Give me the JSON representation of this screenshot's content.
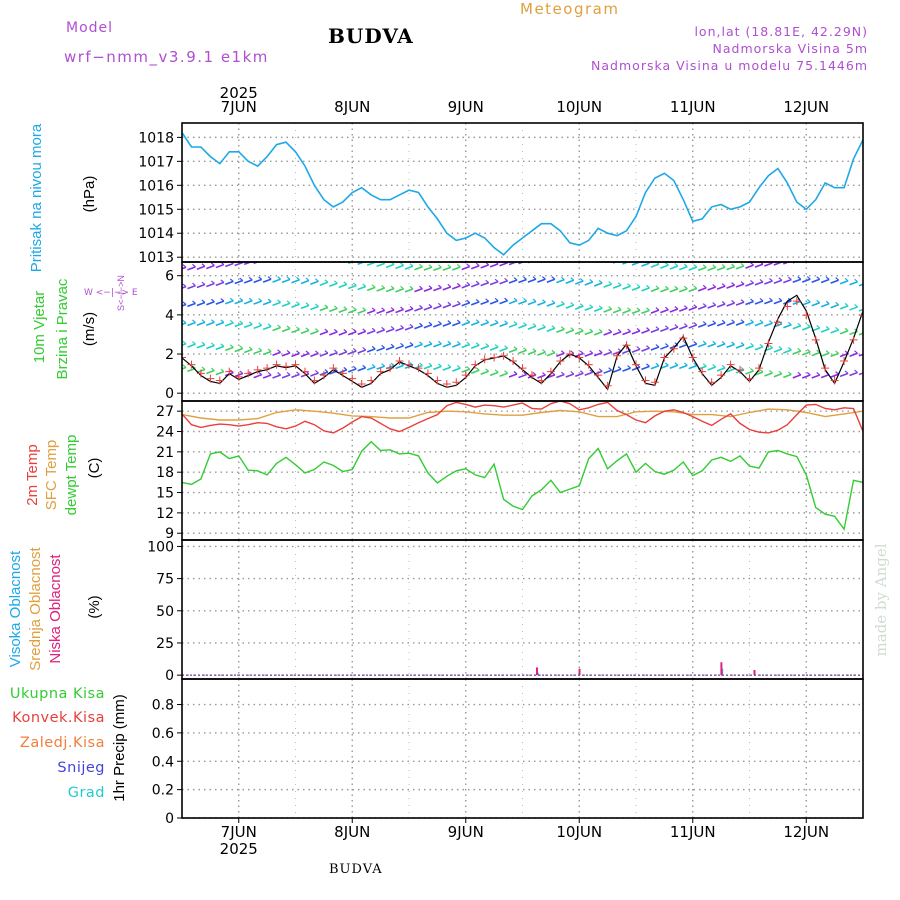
{
  "header": {
    "model_label": "Model",
    "model_name": "wrf−nmm_v3.9.1  e1km",
    "location": "BUDVA",
    "product": "Meteogram",
    "coords": "lon,lat (18.81E, 42.29N)",
    "elevation": "Nadmorska Visina 5m",
    "model_elevation": "Nadmorska Visina u modelu 75.1446m",
    "footer_location": "BUDVA",
    "watermark": "made by Angel"
  },
  "colors": {
    "pressure": "#1ea8e8",
    "temp2m": "#e8403c",
    "sfc_temp": "#e0a040",
    "dewpoint": "#33cc33",
    "wind_speed": "#000000",
    "gust": "#e8403c",
    "high_cloud": "#1ea8e8",
    "mid_cloud": "#e0a040",
    "low_cloud": "#e0207c",
    "frame": "#000000",
    "grid": "#888888"
  },
  "time_axis": {
    "year": "2025",
    "days": [
      "7JUN",
      "8JUN",
      "9JUN",
      "10JUN",
      "11JUN",
      "12JUN"
    ],
    "start_hour_offset": -12,
    "end_hour": 132
  },
  "panels": {
    "pressure": {
      "label": "Pritisak na nivou mora",
      "unit": "(hPa)",
      "ticks": [
        "1013",
        "1014",
        "1015",
        "1016",
        "1017",
        "1018"
      ]
    },
    "wind": {
      "label1": "10m Vjetar",
      "label2": "Brzina i Pravac",
      "unit": "(m/s)",
      "ticks": [
        "0",
        "2",
        "4",
        "6"
      ],
      "compass": "W  <−|−>  E",
      "compass_v": "S<−|−>N"
    },
    "temperature": {
      "label1": "2m Temp",
      "label2": "SFC Temp",
      "label3": "dewpt Temp",
      "unit": "(C)",
      "ticks": [
        "9",
        "12",
        "15",
        "18",
        "21",
        "24",
        "27"
      ]
    },
    "cloud": {
      "label1": "Visoka Oblacnost",
      "label2": "Srednja Oblacnost",
      "label3": "Niska Oblacnost",
      "unit": "(%)",
      "ticks": [
        "0",
        "25",
        "50",
        "75",
        "100"
      ]
    },
    "precip": {
      "unit": "1hr Precip (mm)",
      "ticks": [
        "0",
        "0.2",
        "0.4",
        "0.6",
        "0.8"
      ],
      "legend": [
        "Ukupna Kisa",
        "Konvek.Kisa",
        "Zaledj.Kisa",
        "Snijeg",
        "Grad"
      ]
    }
  },
  "chart_data": [
    {
      "type": "line",
      "title": "Pritisak na nivou mora",
      "ylabel": "(hPa)",
      "ylim": [
        1012.8,
        1018.6
      ],
      "x_unit": "hours since 7JUN 00:00",
      "series": [
        {
          "name": "Pritisak na nivou mora",
          "x": [
            -12,
            -10,
            -8,
            -6,
            -4,
            -2,
            0,
            2,
            4,
            6,
            8,
            10,
            12,
            14,
            16,
            18,
            20,
            22,
            24,
            26,
            28,
            30,
            32,
            34,
            36,
            38,
            40,
            42,
            44,
            46,
            48,
            50,
            52,
            54,
            56,
            58,
            60,
            62,
            64,
            66,
            68,
            70,
            72,
            74,
            76,
            78,
            80,
            82,
            84,
            86,
            88,
            90,
            92,
            94,
            96,
            98,
            100,
            102,
            104,
            106,
            108,
            110,
            112,
            114,
            116,
            118,
            120,
            122,
            124,
            126,
            128,
            130,
            132
          ],
          "values": [
            1018.2,
            1017.6,
            1017.6,
            1017.2,
            1016.9,
            1017.4,
            1017.4,
            1017.0,
            1016.8,
            1017.2,
            1017.7,
            1017.8,
            1017.4,
            1016.8,
            1016.0,
            1015.4,
            1015.1,
            1015.3,
            1015.7,
            1015.9,
            1015.6,
            1015.4,
            1015.4,
            1015.6,
            1015.8,
            1015.7,
            1015.1,
            1014.6,
            1014.0,
            1013.7,
            1013.8,
            1014.0,
            1013.8,
            1013.4,
            1013.1,
            1013.5,
            1013.8,
            1014.1,
            1014.4,
            1014.4,
            1014.1,
            1013.6,
            1013.5,
            1013.7,
            1014.2,
            1014.0,
            1013.9,
            1014.1,
            1014.7,
            1015.7,
            1016.3,
            1016.5,
            1016.2,
            1015.4,
            1014.5,
            1014.6,
            1015.1,
            1015.2,
            1015.0,
            1015.1,
            1015.3,
            1015.9,
            1016.4,
            1016.7,
            1016.1,
            1015.3,
            1015.0,
            1015.4,
            1016.1,
            1015.9,
            1015.9,
            1017.1,
            1017.9
          ]
        }
      ]
    },
    {
      "type": "line",
      "title": "10m Vjetar Brzina i Pravac",
      "ylabel": "(m/s)",
      "ylim": [
        -0.4,
        6.7
      ],
      "x_unit": "hours since 7JUN 00:00",
      "series": [
        {
          "name": "Brzina",
          "x": [
            -12,
            -10,
            -8,
            -6,
            -4,
            -2,
            0,
            2,
            4,
            6,
            8,
            10,
            12,
            14,
            16,
            18,
            20,
            22,
            24,
            26,
            28,
            30,
            32,
            34,
            36,
            38,
            40,
            42,
            44,
            46,
            48,
            50,
            52,
            54,
            56,
            58,
            60,
            62,
            64,
            66,
            68,
            70,
            72,
            74,
            76,
            78,
            80,
            82,
            84,
            86,
            88,
            90,
            92,
            94,
            96,
            98,
            100,
            102,
            104,
            106,
            108,
            110,
            112,
            114,
            116,
            118,
            120,
            122,
            124,
            126,
            128,
            130,
            132
          ],
          "values": [
            1.8,
            1.4,
            0.9,
            0.6,
            0.5,
            1.0,
            0.7,
            0.9,
            1.1,
            1.2,
            1.4,
            1.3,
            1.4,
            1.0,
            0.5,
            0.8,
            1.2,
            0.9,
            0.6,
            0.3,
            0.5,
            1.0,
            1.2,
            1.6,
            1.4,
            1.2,
            0.9,
            0.5,
            0.3,
            0.4,
            0.8,
            1.4,
            1.7,
            1.8,
            1.9,
            1.6,
            1.2,
            0.8,
            0.5,
            1.0,
            1.6,
            2.0,
            1.8,
            1.4,
            0.8,
            0.2,
            1.9,
            2.5,
            1.4,
            0.5,
            0.4,
            1.8,
            2.3,
            2.9,
            1.8,
            1.0,
            0.4,
            0.8,
            1.4,
            1.1,
            0.6,
            1.2,
            2.6,
            3.8,
            4.7,
            5.0,
            4.2,
            2.8,
            1.2,
            0.5,
            1.6,
            2.8,
            4.2
          ]
        }
      ]
    },
    {
      "type": "line",
      "title": "2m Temp / SFC Temp / dewpt Temp",
      "ylabel": "(C)",
      "ylim": [
        8,
        28.5
      ],
      "x_unit": "hours since 7JUN 00:00",
      "series": [
        {
          "name": "2m Temp",
          "x": [
            -12,
            -10,
            -8,
            -6,
            -4,
            -2,
            0,
            2,
            4,
            6,
            8,
            10,
            12,
            14,
            16,
            18,
            20,
            22,
            24,
            26,
            28,
            30,
            32,
            34,
            36,
            38,
            40,
            42,
            44,
            46,
            48,
            50,
            52,
            54,
            56,
            58,
            60,
            62,
            64,
            66,
            68,
            70,
            72,
            74,
            76,
            78,
            80,
            82,
            84,
            86,
            88,
            90,
            92,
            94,
            96,
            98,
            100,
            102,
            104,
            106,
            108,
            110,
            112,
            114,
            116,
            118,
            120,
            122,
            124,
            126,
            128,
            130,
            132
          ],
          "values": [
            26.6,
            25.0,
            24.6,
            24.9,
            25.1,
            25.0,
            24.8,
            25.0,
            25.3,
            25.2,
            24.7,
            24.4,
            24.8,
            25.5,
            25.0,
            24.1,
            23.8,
            24.5,
            25.4,
            26.2,
            26.0,
            25.2,
            24.4,
            24.0,
            24.6,
            25.3,
            25.9,
            26.5,
            27.8,
            28.3,
            28.0,
            27.6,
            27.9,
            27.8,
            27.6,
            27.9,
            28.2,
            27.4,
            27.3,
            28.1,
            28.5,
            28.1,
            27.2,
            27.5,
            28.0,
            28.3,
            27.1,
            26.5,
            25.7,
            25.3,
            26.3,
            27.0,
            27.2,
            26.8,
            26.2,
            25.5,
            24.9,
            25.8,
            26.6,
            25.2,
            24.3,
            23.9,
            23.8,
            24.2,
            25.0,
            26.5,
            27.9,
            28.0,
            27.4,
            27.2,
            27.5,
            27.4,
            24.0
          ]
        },
        {
          "name": "SFC Temp",
          "x": [
            -12,
            -8,
            -4,
            0,
            4,
            8,
            12,
            16,
            20,
            24,
            28,
            32,
            36,
            40,
            44,
            48,
            52,
            56,
            60,
            64,
            68,
            72,
            76,
            80,
            84,
            88,
            92,
            96,
            100,
            104,
            108,
            112,
            116,
            120,
            124,
            128,
            132
          ],
          "values": [
            26.5,
            26.0,
            25.7,
            25.7,
            25.9,
            26.8,
            27.2,
            27.0,
            26.7,
            26.3,
            26.2,
            26.0,
            26.0,
            26.8,
            27.0,
            26.9,
            26.6,
            26.4,
            26.4,
            26.8,
            27.1,
            26.9,
            26.2,
            26.2,
            26.9,
            27.0,
            26.9,
            26.5,
            26.5,
            26.2,
            26.8,
            27.3,
            27.2,
            26.8,
            26.2,
            26.6,
            27.0
          ]
        },
        {
          "name": "dewpt Temp",
          "x": [
            -12,
            -10,
            -8,
            -6,
            -4,
            -2,
            0,
            2,
            4,
            6,
            8,
            10,
            12,
            14,
            16,
            18,
            20,
            22,
            24,
            26,
            28,
            30,
            32,
            34,
            36,
            38,
            40,
            42,
            44,
            46,
            48,
            50,
            52,
            54,
            56,
            58,
            60,
            62,
            64,
            66,
            68,
            70,
            72,
            74,
            76,
            78,
            80,
            82,
            84,
            86,
            88,
            90,
            92,
            94,
            96,
            98,
            100,
            102,
            104,
            106,
            108,
            110,
            112,
            114,
            116,
            118,
            120,
            122,
            124,
            126,
            128,
            130,
            132
          ],
          "values": [
            16.5,
            16.2,
            17.0,
            20.7,
            21.0,
            20.0,
            20.4,
            18.3,
            18.2,
            17.6,
            19.3,
            20.2,
            19.1,
            17.9,
            18.4,
            19.5,
            19.0,
            18.1,
            18.4,
            21.1,
            22.5,
            21.2,
            21.3,
            20.7,
            20.8,
            20.4,
            17.9,
            16.4,
            17.4,
            18.2,
            18.5,
            17.6,
            17.2,
            19.2,
            14.0,
            13.0,
            12.5,
            14.5,
            15.4,
            16.8,
            15.0,
            15.5,
            16.0,
            20.0,
            21.5,
            18.5,
            19.7,
            20.7,
            18.0,
            19.3,
            18.1,
            17.7,
            18.3,
            19.5,
            17.5,
            18.2,
            19.8,
            20.2,
            19.6,
            20.4,
            18.9,
            18.6,
            21.0,
            21.2,
            20.7,
            20.3,
            17.6,
            12.8,
            11.8,
            11.5,
            9.6,
            16.8,
            16.5
          ]
        }
      ]
    },
    {
      "type": "bar",
      "title": "Oblacnost",
      "ylabel": "(%)",
      "ylim": [
        -3,
        105
      ],
      "x_unit": "hours since 7JUN 00:00",
      "series": [
        {
          "name": "Visoka Oblacnost",
          "x": [
            63,
            102
          ],
          "values": [
            2,
            5
          ]
        },
        {
          "name": "Srednja Oblacnost",
          "x": [],
          "values": []
        },
        {
          "name": "Niska Oblacnost",
          "x": [
            62,
            71,
            101,
            108
          ],
          "values": [
            6,
            5,
            10,
            4
          ]
        }
      ]
    },
    {
      "type": "bar",
      "title": "1hr Precip",
      "ylabel": "1hr Precip (mm)",
      "ylim": [
        0,
        0.98
      ],
      "series": [
        {
          "name": "Ukupna Kisa",
          "values": []
        },
        {
          "name": "Konvek.Kisa",
          "values": []
        },
        {
          "name": "Zaledj.Kisa",
          "values": []
        },
        {
          "name": "Snijeg",
          "values": []
        },
        {
          "name": "Grad",
          "values": []
        }
      ]
    }
  ]
}
